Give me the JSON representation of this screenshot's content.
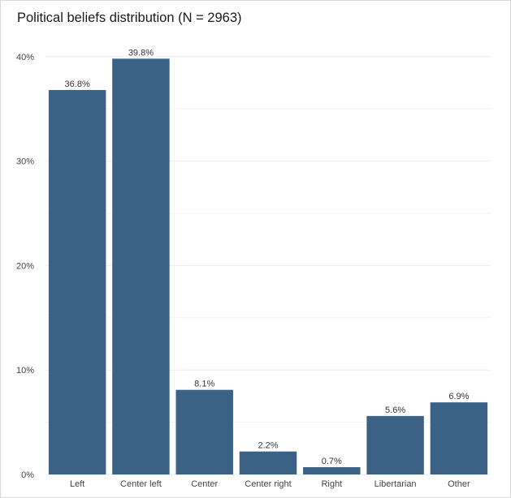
{
  "chart_data": {
    "type": "bar",
    "title": "Political beliefs distribution (N = 2963)",
    "xlabel": "",
    "ylabel": "",
    "categories": [
      "Left",
      "Center left",
      "Center",
      "Center right",
      "Right",
      "Libertarian",
      "Other"
    ],
    "values": [
      36.8,
      39.8,
      8.1,
      2.2,
      0.7,
      5.6,
      6.9
    ],
    "data_labels": [
      "36.8%",
      "39.8%",
      "8.1%",
      "2.2%",
      "0.7%",
      "5.6%",
      "6.9%"
    ],
    "yticks": [
      0,
      10,
      20,
      30,
      40
    ],
    "ytick_labels": [
      "0%",
      "10%",
      "20%",
      "30%",
      "40%"
    ],
    "ylim": [
      0,
      42
    ],
    "grid": true,
    "legend": "none",
    "bar_color": "#3b6286",
    "grid_color": "#ebebeb"
  }
}
